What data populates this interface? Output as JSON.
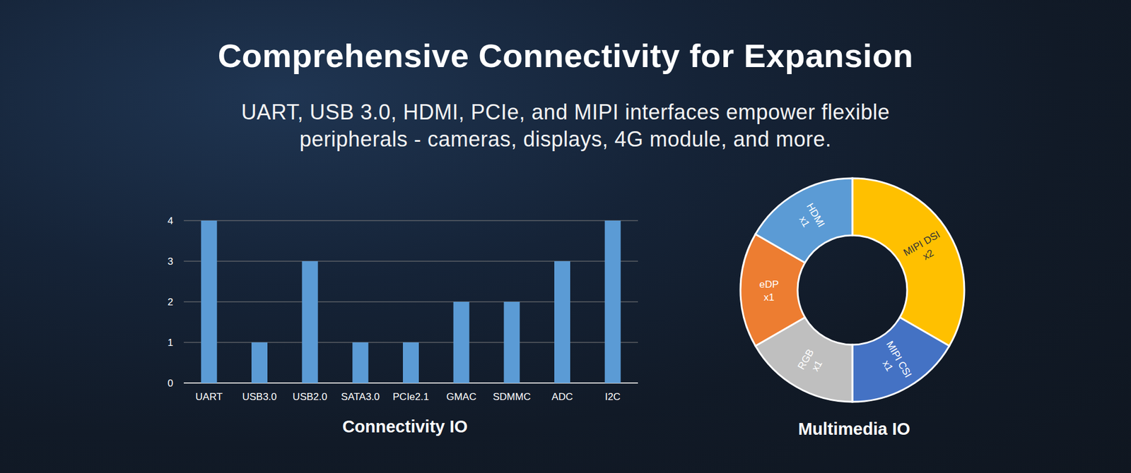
{
  "header": {
    "title": "Comprehensive Connectivity for Expansion",
    "subtitle": "UART, USB 3.0, HDMI, PCIe, and MIPI interfaces empower flexible peripherals - cameras, displays, 4G module, and more."
  },
  "chart_data": [
    {
      "type": "bar",
      "title": "Connectivity IO",
      "categories": [
        "UART",
        "USB3.0",
        "USB2.0",
        "SATA3.0",
        "PCIe2.1",
        "GMAC",
        "SDMMC",
        "ADC",
        "I2C"
      ],
      "values": [
        4,
        1,
        3,
        1,
        1,
        2,
        2,
        3,
        4
      ],
      "color": "#5b9bd5",
      "ylim": [
        0,
        4
      ],
      "yticks": [
        0,
        1,
        2,
        3,
        4
      ],
      "grid": true
    },
    {
      "type": "donut",
      "title": "Multimedia IO",
      "categories": [
        "MIPI DSI",
        "MIPI CSI",
        "RGB",
        "eDP",
        "HDMI"
      ],
      "values": [
        2,
        1,
        1,
        1,
        1
      ],
      "value_labels": [
        "x2",
        "x1",
        "x1",
        "x1",
        "x1"
      ],
      "colors": [
        "#ffc000",
        "#4472c4",
        "#bfbfbf",
        "#ed7d31",
        "#5b9bd5"
      ],
      "data_labels": true
    }
  ]
}
